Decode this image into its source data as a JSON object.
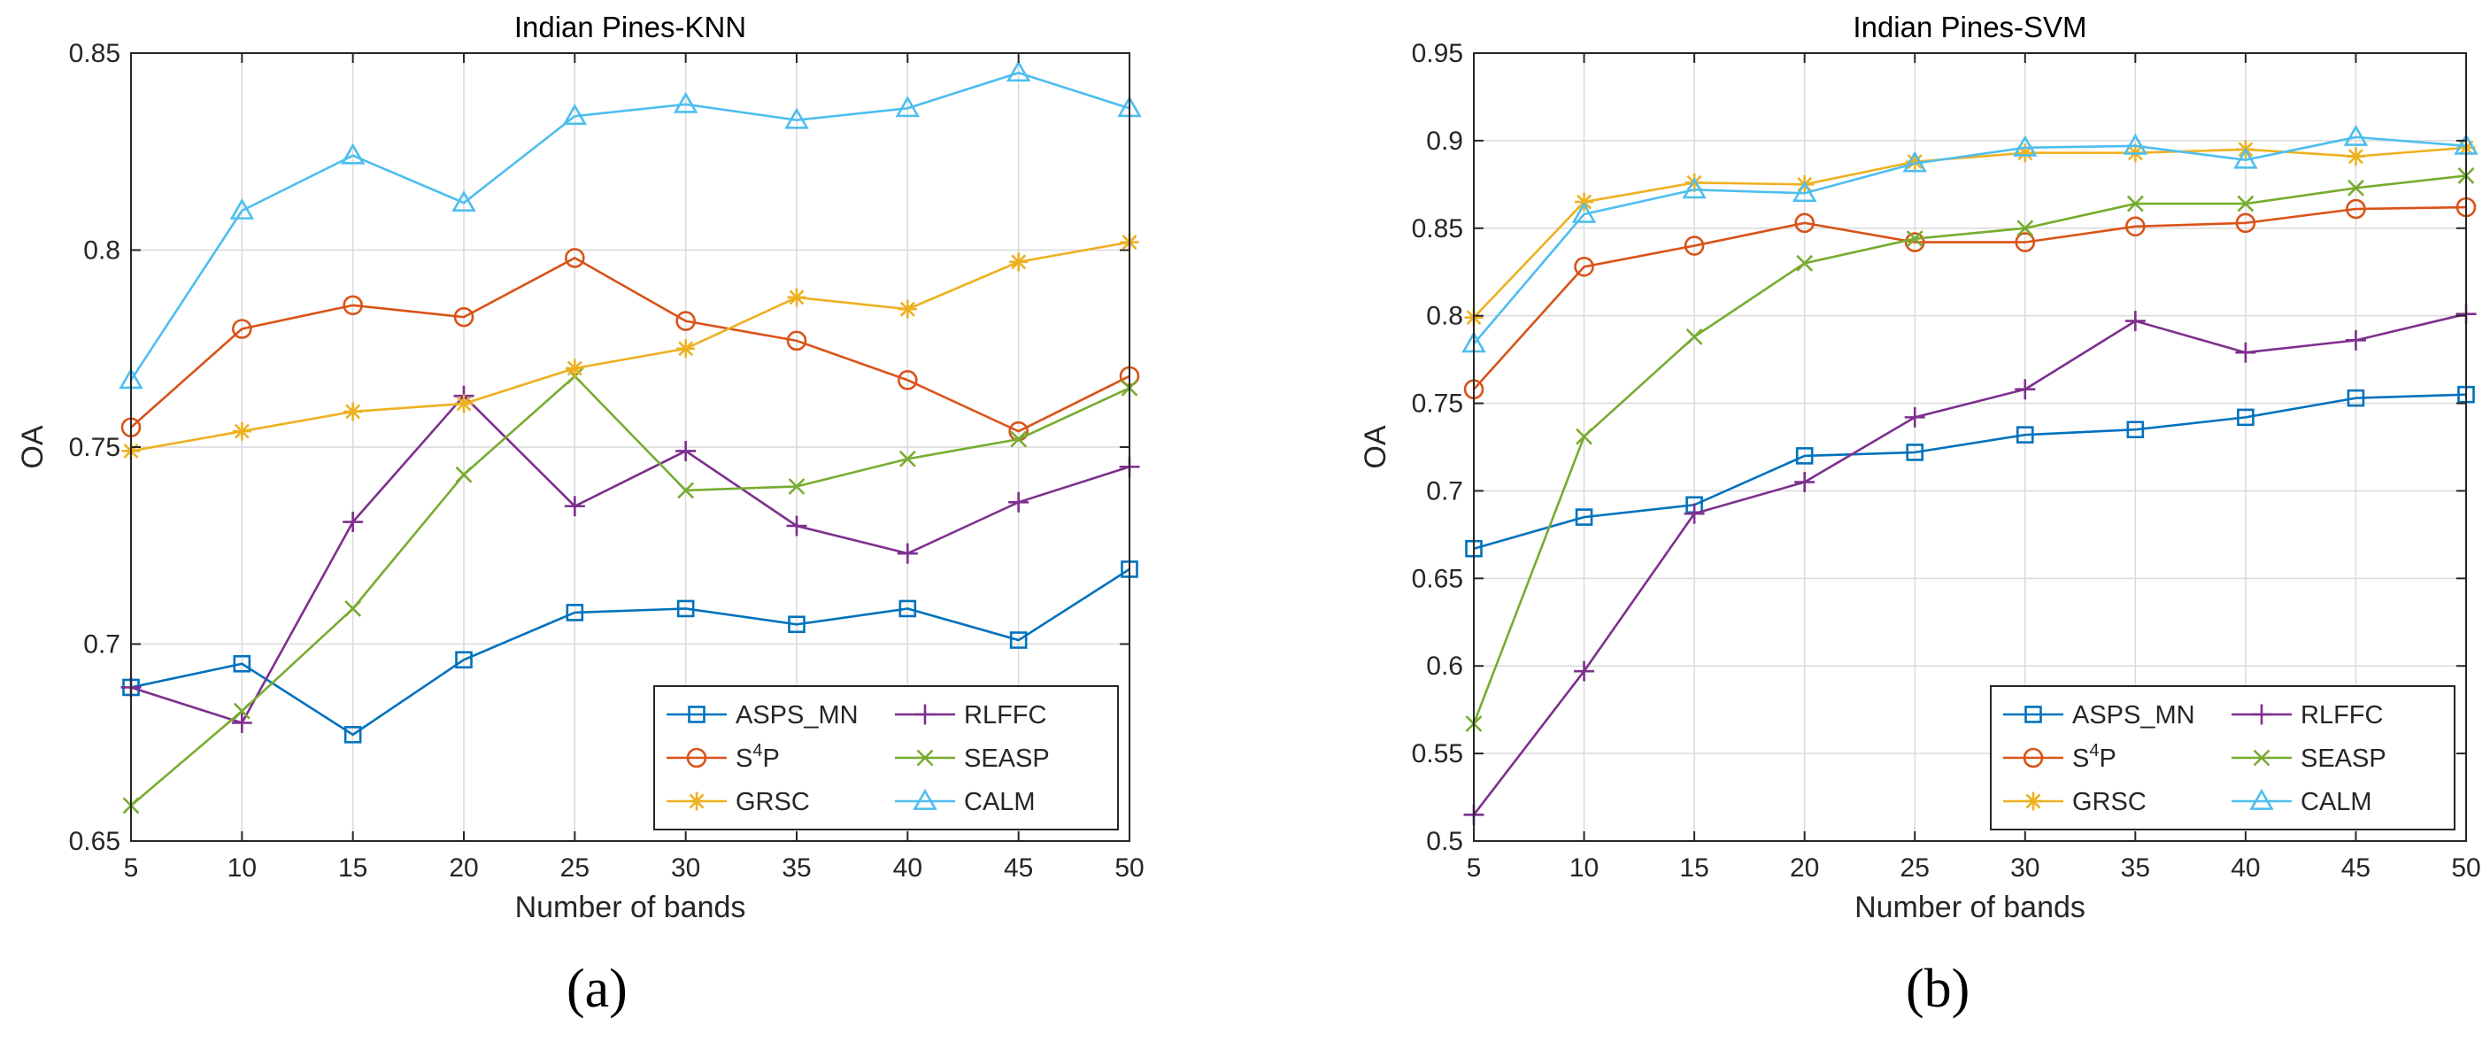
{
  "chart_data": [
    {
      "type": "line",
      "title": "Indian Pines-KNN",
      "xlabel": "Number of bands",
      "ylabel": "OA",
      "panel_label": "(a)",
      "xlim": [
        5,
        50
      ],
      "ylim": [
        0.65,
        0.85
      ],
      "xticks": [
        5,
        10,
        15,
        20,
        25,
        30,
        35,
        40,
        45,
        50
      ],
      "xtick_labels": [
        "5",
        "10",
        "15",
        "20",
        "25",
        "30",
        "35",
        "40",
        "45",
        "50"
      ],
      "yticks": [
        0.65,
        0.7,
        0.75,
        0.8,
        0.85
      ],
      "ytick_labels": [
        "0.65",
        "0.7",
        "0.75",
        "0.8",
        "0.85"
      ],
      "grid": true,
      "legend_position": "bottom-right",
      "x": [
        5,
        10,
        15,
        20,
        25,
        30,
        35,
        40,
        45,
        50
      ],
      "series": [
        {
          "name": "ASPS_MN",
          "name_main": "ASPS_MN",
          "name_sup": "",
          "name_tail": "",
          "color": "#0072BD",
          "marker": "square",
          "values": [
            0.689,
            0.695,
            0.677,
            0.696,
            0.708,
            0.709,
            0.705,
            0.709,
            0.701,
            0.719
          ]
        },
        {
          "name": "RLFFC",
          "name_main": "RLFFC",
          "name_sup": "",
          "name_tail": "",
          "color": "#7E2F8E",
          "marker": "plus",
          "values": [
            0.689,
            0.68,
            0.731,
            0.763,
            0.735,
            0.749,
            0.73,
            0.723,
            0.736,
            0.745
          ]
        },
        {
          "name": "S4P",
          "name_main": "S",
          "name_sup": "4",
          "name_tail": "P",
          "color": "#D95319",
          "marker": "circle",
          "values": [
            0.755,
            0.78,
            0.786,
            0.783,
            0.798,
            0.782,
            0.777,
            0.767,
            0.754,
            0.768
          ]
        },
        {
          "name": "SEASP",
          "name_main": "SEASP",
          "name_sup": "",
          "name_tail": "",
          "color": "#77AC30",
          "marker": "x",
          "values": [
            0.659,
            0.683,
            0.709,
            0.743,
            0.768,
            0.739,
            0.74,
            0.747,
            0.752,
            0.765
          ]
        },
        {
          "name": "GRSC",
          "name_main": "GRSC",
          "name_sup": "",
          "name_tail": "",
          "color": "#EDB120",
          "marker": "star",
          "values": [
            0.749,
            0.754,
            0.759,
            0.761,
            0.77,
            0.775,
            0.788,
            0.785,
            0.797,
            0.802
          ]
        },
        {
          "name": "CALM",
          "name_main": "CALM",
          "name_sup": "",
          "name_tail": "",
          "color": "#4DBEEE",
          "marker": "triangle",
          "values": [
            0.767,
            0.81,
            0.824,
            0.812,
            0.834,
            0.837,
            0.833,
            0.836,
            0.845,
            0.836
          ]
        }
      ]
    },
    {
      "type": "line",
      "title": "Indian Pines-SVM",
      "xlabel": "Number of bands",
      "ylabel": "OA",
      "panel_label": "(b)",
      "xlim": [
        5,
        50
      ],
      "ylim": [
        0.5,
        0.95
      ],
      "xticks": [
        5,
        10,
        15,
        20,
        25,
        30,
        35,
        40,
        45,
        50
      ],
      "xtick_labels": [
        "5",
        "10",
        "15",
        "20",
        "25",
        "30",
        "35",
        "40",
        "45",
        "50"
      ],
      "yticks": [
        0.5,
        0.55,
        0.6,
        0.65,
        0.7,
        0.75,
        0.8,
        0.85,
        0.9,
        0.95
      ],
      "ytick_labels": [
        "0.5",
        "0.55",
        "0.6",
        "0.65",
        "0.7",
        "0.75",
        "0.8",
        "0.85",
        "0.9",
        "0.95"
      ],
      "grid": true,
      "legend_position": "bottom-right",
      "x": [
        5,
        10,
        15,
        20,
        25,
        30,
        35,
        40,
        45,
        50
      ],
      "series": [
        {
          "name": "ASPS_MN",
          "name_main": "ASPS_MN",
          "name_sup": "",
          "name_tail": "",
          "color": "#0072BD",
          "marker": "square",
          "values": [
            0.667,
            0.685,
            0.692,
            0.72,
            0.722,
            0.732,
            0.735,
            0.742,
            0.753,
            0.755
          ]
        },
        {
          "name": "RLFFC",
          "name_main": "RLFFC",
          "name_sup": "",
          "name_tail": "",
          "color": "#7E2F8E",
          "marker": "plus",
          "values": [
            0.515,
            0.597,
            0.687,
            0.705,
            0.742,
            0.758,
            0.797,
            0.779,
            0.786,
            0.801
          ]
        },
        {
          "name": "S4P",
          "name_main": "S",
          "name_sup": "4",
          "name_tail": "P",
          "color": "#D95319",
          "marker": "circle",
          "values": [
            0.758,
            0.828,
            0.84,
            0.853,
            0.842,
            0.842,
            0.851,
            0.853,
            0.861,
            0.862
          ]
        },
        {
          "name": "SEASP",
          "name_main": "SEASP",
          "name_sup": "",
          "name_tail": "",
          "color": "#77AC30",
          "marker": "x",
          "values": [
            0.567,
            0.731,
            0.788,
            0.83,
            0.844,
            0.85,
            0.864,
            0.864,
            0.873,
            0.88
          ]
        },
        {
          "name": "GRSC",
          "name_main": "GRSC",
          "name_sup": "",
          "name_tail": "",
          "color": "#EDB120",
          "marker": "star",
          "values": [
            0.799,
            0.865,
            0.876,
            0.875,
            0.888,
            0.893,
            0.893,
            0.895,
            0.891,
            0.896
          ]
        },
        {
          "name": "CALM",
          "name_main": "CALM",
          "name_sup": "",
          "name_tail": "",
          "color": "#4DBEEE",
          "marker": "triangle",
          "values": [
            0.784,
            0.858,
            0.872,
            0.87,
            0.887,
            0.896,
            0.897,
            0.889,
            0.902,
            0.897
          ]
        }
      ]
    }
  ]
}
